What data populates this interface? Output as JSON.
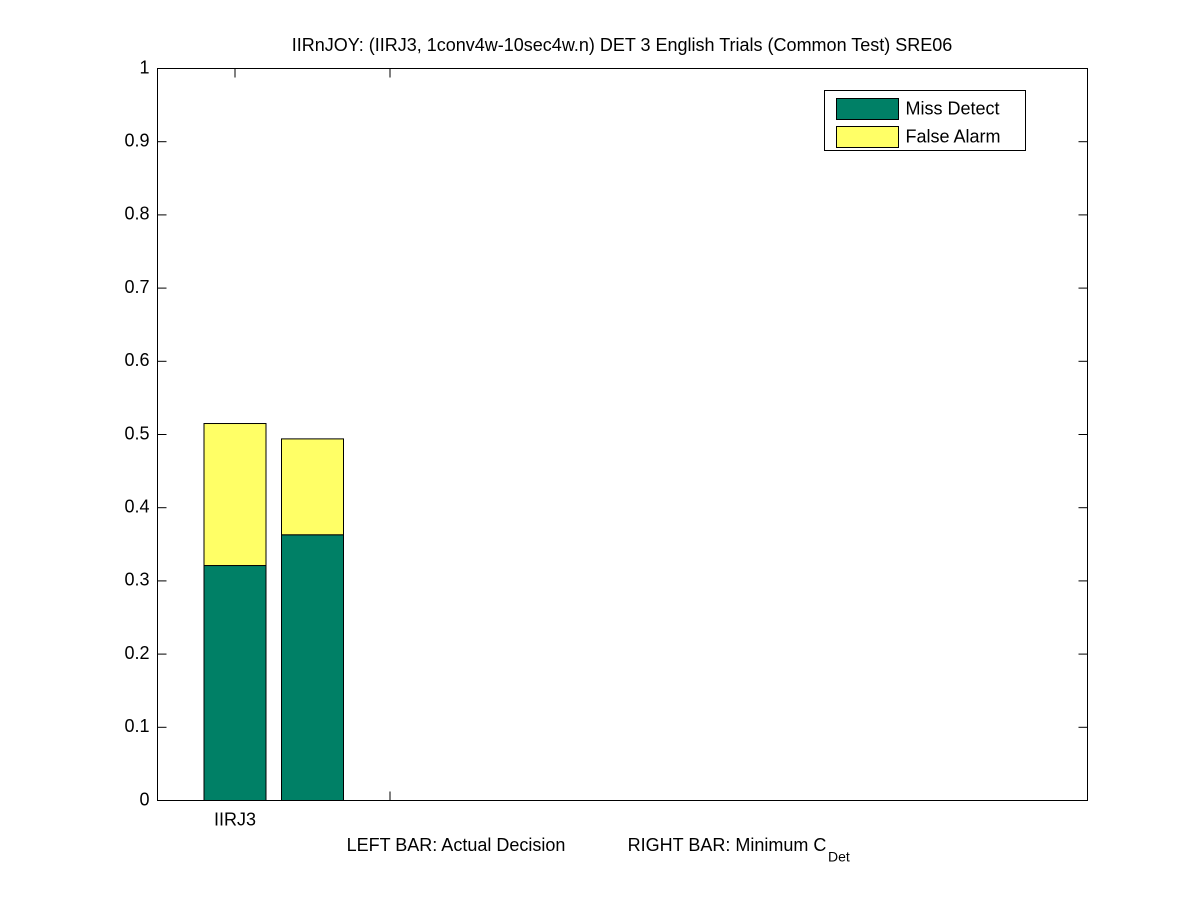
{
  "chart_data": {
    "type": "stacked-bar",
    "title": "IIRnJOY: (IIRJ3, 1conv4w-10sec4w.n) DET 3 English Trials (Common Test) SRE06",
    "x_label_parts": [
      "LEFT BAR: Actual Decision",
      "RIGHT BAR: Minimum C",
      "Det"
    ],
    "x": [
      1,
      1.5
    ],
    "bar_width": 0.4,
    "series": [
      {
        "name": "Miss Detect",
        "color": "#008066",
        "values": [
          0.321,
          0.363
        ]
      },
      {
        "name": "False Alarm",
        "color": "#ffff66",
        "values": [
          0.194,
          0.131
        ]
      }
    ],
    "xlim": [
      0.5,
      6.5
    ],
    "xticks": [
      {
        "value": 1,
        "label": "IIRJ3"
      },
      {
        "value": 2,
        "label": null
      }
    ],
    "ylim": [
      0,
      1
    ],
    "yticks": [
      0,
      0.1,
      0.2,
      0.3,
      0.4,
      0.5,
      0.6,
      0.7,
      0.8,
      0.9,
      1
    ],
    "grid": false,
    "legend": "upper right"
  }
}
